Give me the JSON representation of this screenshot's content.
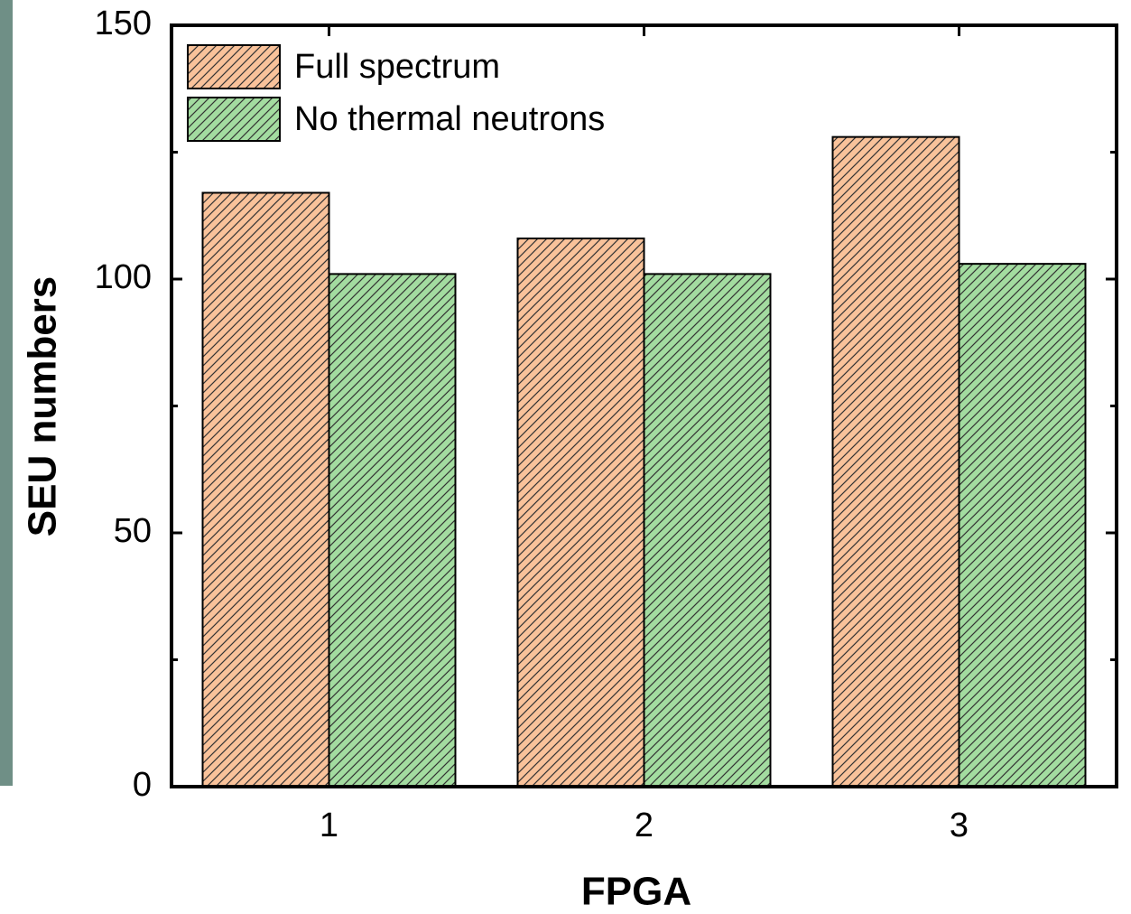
{
  "chart_data": {
    "type": "bar",
    "xlabel": "FPGA",
    "ylabel": "SEU numbers",
    "categories": [
      "1",
      "2",
      "3"
    ],
    "series": [
      {
        "name": "Full spectrum",
        "color": "#f9c29a",
        "values": [
          117,
          108,
          128
        ]
      },
      {
        "name": "No thermal neutrons",
        "color": "#a3dca0",
        "values": [
          101,
          101,
          103
        ]
      }
    ],
    "ylim": [
      0,
      150
    ],
    "yticks": [
      0,
      50,
      100,
      150
    ],
    "hatch": true,
    "legend": "upper left"
  }
}
